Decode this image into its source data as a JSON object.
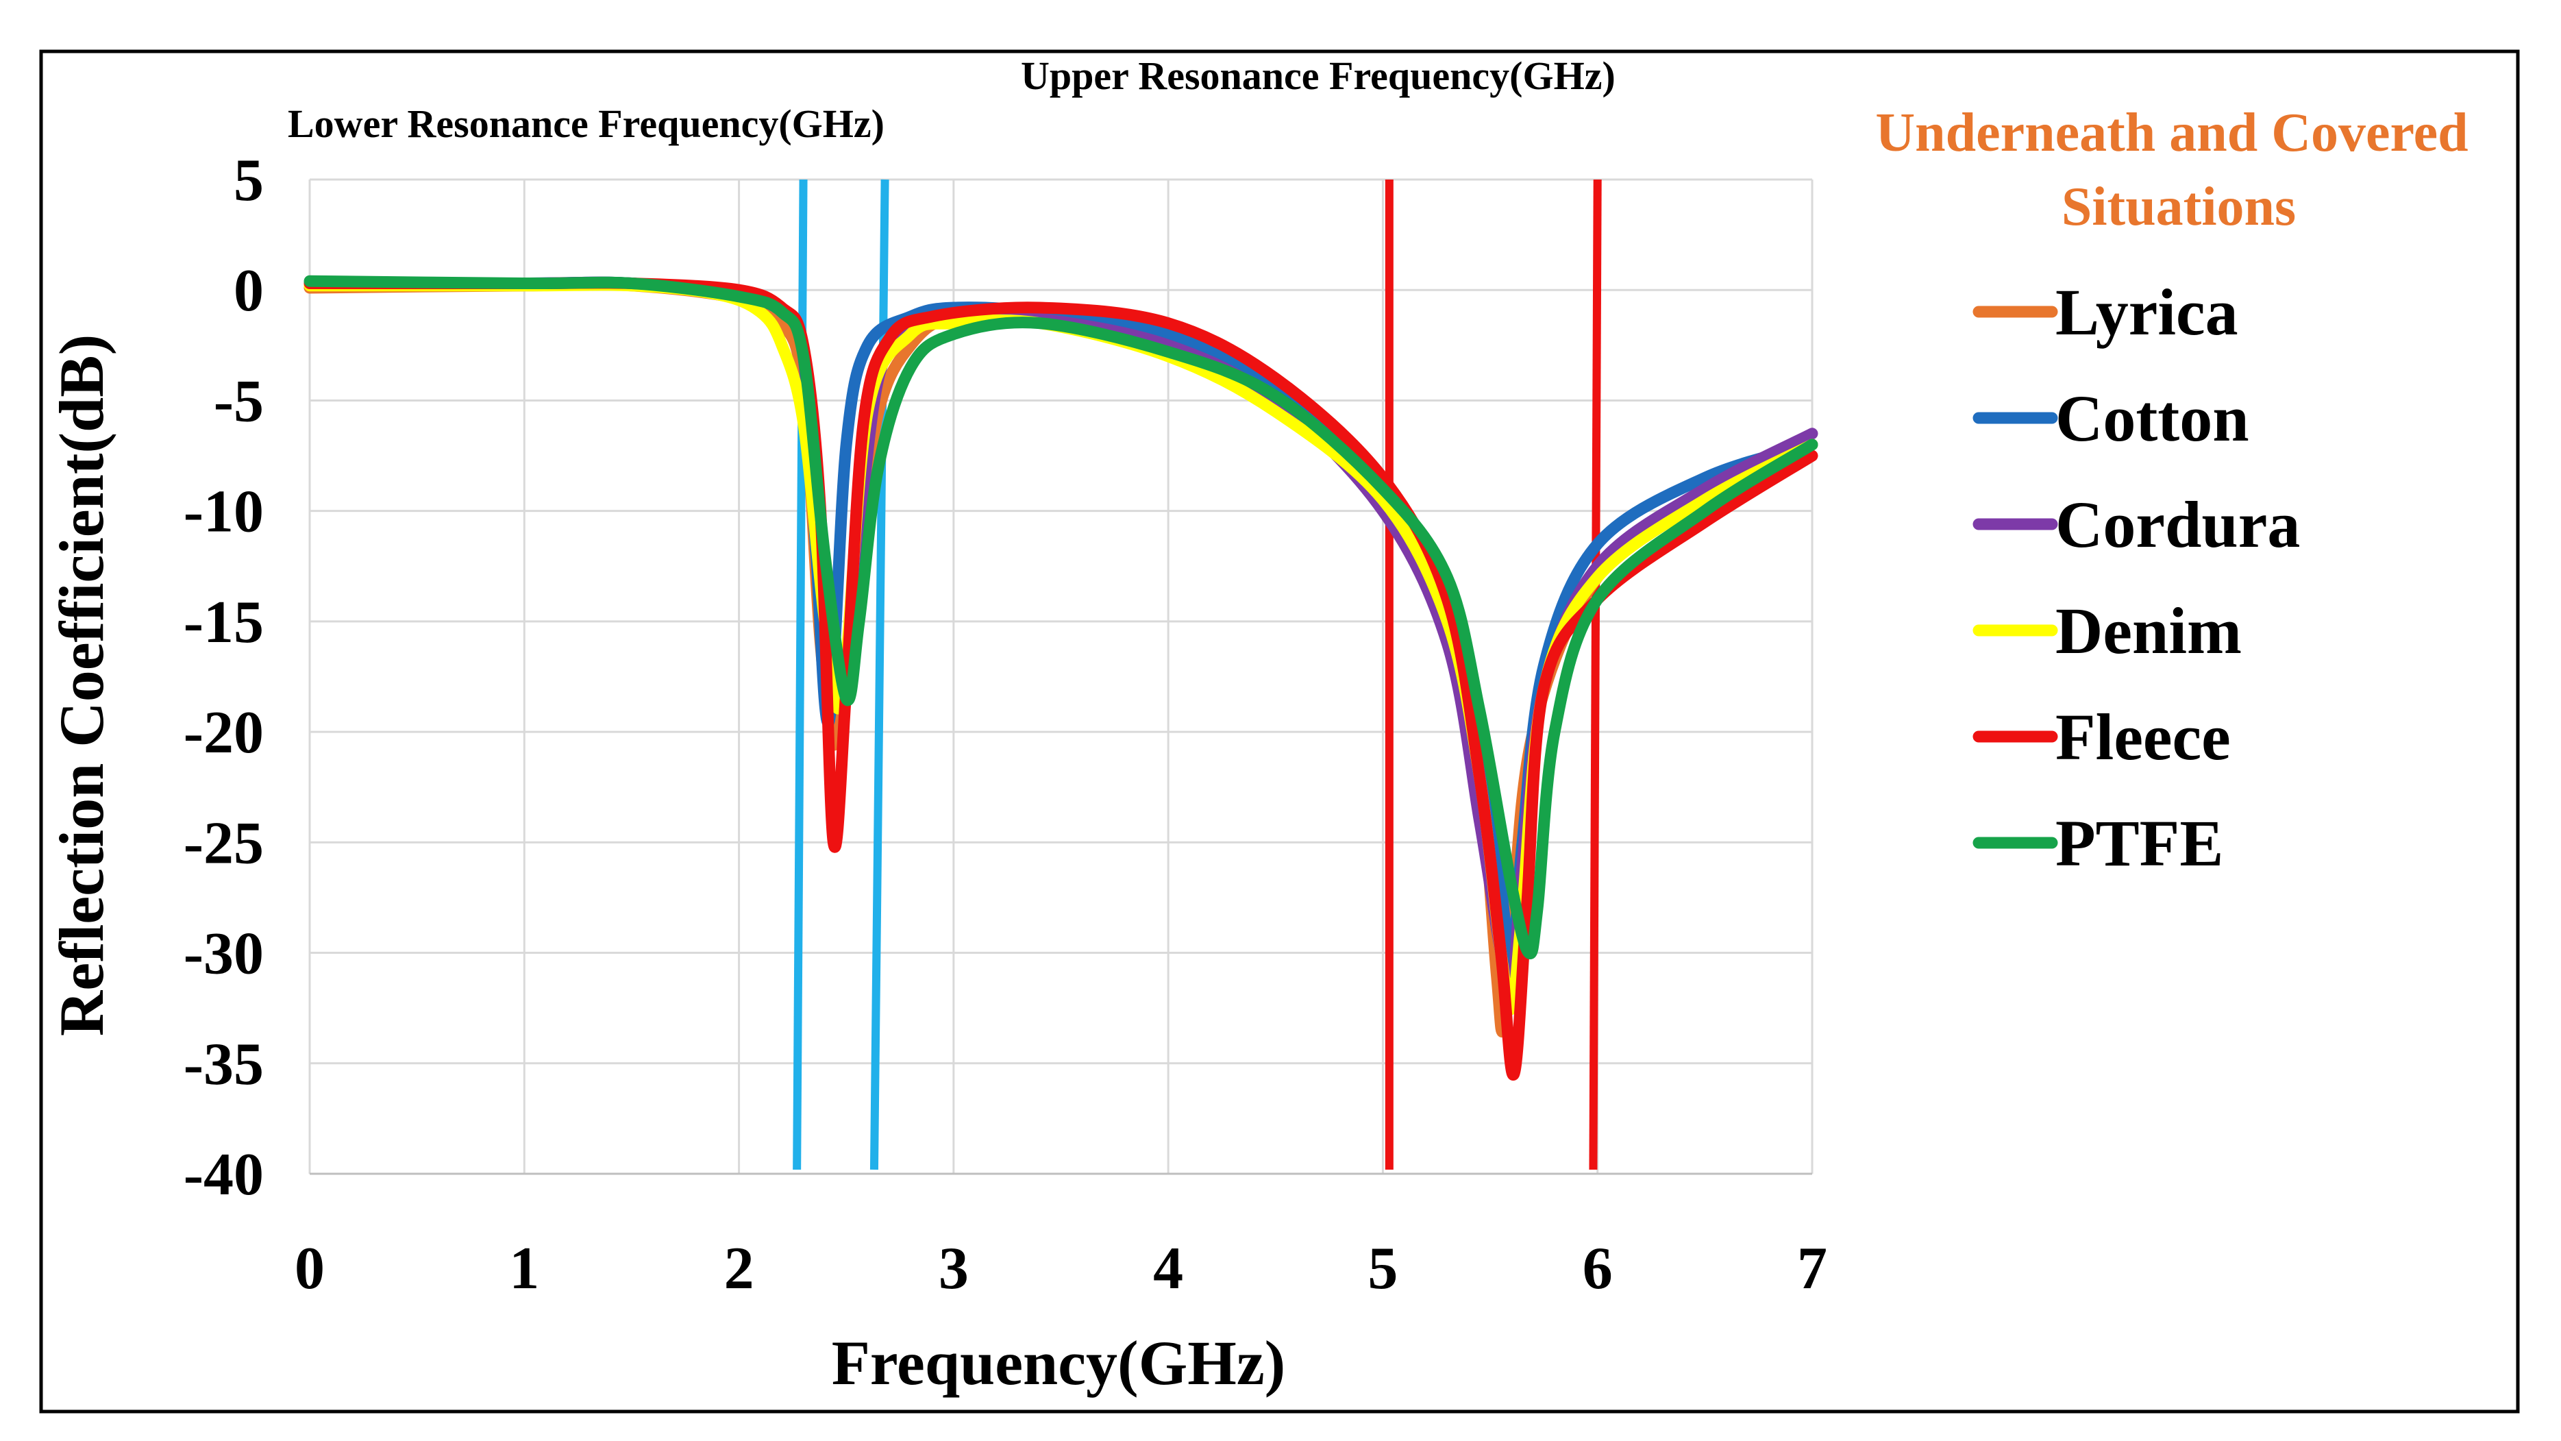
{
  "chart_data": {
    "type": "line",
    "xlabel": "Frequency(GHz)",
    "ylabel": "Reflection Coefficient(dB)",
    "xlim": [
      0,
      7
    ],
    "ylim": [
      -40,
      5
    ],
    "xticks": [
      0,
      1,
      2,
      3,
      4,
      5,
      6,
      7
    ],
    "yticks": [
      5,
      0,
      -5,
      -10,
      -15,
      -20,
      -25,
      -30,
      -35,
      -40
    ],
    "x_tick_labels": [
      "0",
      "1",
      "2",
      "3",
      "4",
      "5",
      "6",
      "7"
    ],
    "y_tick_labels": [
      "5",
      "0",
      "-5",
      "-10",
      "-15",
      "-20",
      "-25",
      "-30",
      "-35",
      "-40"
    ],
    "grid": true,
    "legend_position": "right",
    "legend_title": "Underneath and Covered Situations",
    "annotations": {
      "lower_band_label": "Lower Resonance Frequency(GHz)",
      "upper_band_label": "Upper Resonance Frequency(GHz)"
    },
    "band_markers": [
      {
        "group": "lower",
        "x_top": 2.3,
        "x_bottom": 2.27,
        "color": "#21b0ea"
      },
      {
        "group": "lower",
        "x_top": 2.68,
        "x_bottom": 2.63,
        "color": "#21b0ea"
      },
      {
        "group": "upper",
        "x_top": 5.03,
        "x_bottom": 5.03,
        "color": "#ee1111"
      },
      {
        "group": "upper",
        "x_top": 6.0,
        "x_bottom": 5.98,
        "color": "#ee1111"
      }
    ],
    "series": [
      {
        "name": "Lyrica",
        "color": "#e8762d",
        "x": [
          0,
          1,
          1.5,
          2.0,
          2.2,
          2.3,
          2.38,
          2.45,
          2.55,
          2.65,
          2.8,
          3.0,
          3.4,
          4.0,
          4.5,
          5.0,
          5.3,
          5.45,
          5.53,
          5.56,
          5.6,
          5.7,
          6.0,
          6.5,
          7.0
        ],
        "y": [
          0.1,
          0.2,
          0.2,
          -0.4,
          -1.5,
          -4.5,
          -16.0,
          -20.5,
          -12.5,
          -5.5,
          -2.5,
          -1.2,
          -1.2,
          -2.5,
          -4.5,
          -9.0,
          -14.0,
          -22.0,
          -31.0,
          -33.5,
          -29.0,
          -20.0,
          -13.0,
          -9.5,
          -7.0
        ]
      },
      {
        "name": "Cotton",
        "color": "#1f6dbf",
        "x": [
          0,
          1,
          1.5,
          2.0,
          2.2,
          2.3,
          2.36,
          2.42,
          2.5,
          2.6,
          2.8,
          3.0,
          3.4,
          4.0,
          4.5,
          5.0,
          5.3,
          5.45,
          5.55,
          5.6,
          5.65,
          5.75,
          6.0,
          6.5,
          7.0
        ],
        "y": [
          0.3,
          0.3,
          0.3,
          -0.3,
          -1.0,
          -3.0,
          -12.0,
          -19.5,
          -7.0,
          -2.5,
          -1.2,
          -0.8,
          -1.0,
          -2.0,
          -4.5,
          -9.0,
          -14.0,
          -20.0,
          -27.0,
          -30.5,
          -25.0,
          -17.0,
          -11.5,
          -8.5,
          -7.0
        ]
      },
      {
        "name": "Cordura",
        "color": "#7d3aa8",
        "x": [
          0,
          1,
          1.5,
          2.0,
          2.2,
          2.3,
          2.4,
          2.48,
          2.55,
          2.65,
          2.8,
          3.0,
          3.4,
          4.0,
          4.5,
          5.0,
          5.3,
          5.45,
          5.55,
          5.6,
          5.65,
          5.75,
          6.0,
          6.5,
          7.0
        ],
        "y": [
          0.3,
          0.3,
          0.3,
          -0.3,
          -1.0,
          -3.0,
          -14.0,
          -18.5,
          -12.0,
          -4.0,
          -1.8,
          -1.2,
          -1.3,
          -2.5,
          -5.0,
          -10.0,
          -16.0,
          -24.0,
          -30.0,
          -32.0,
          -26.0,
          -18.0,
          -12.5,
          -9.0,
          -6.5
        ]
      },
      {
        "name": "Denim",
        "color": "#ffff00",
        "x": [
          0,
          1,
          1.5,
          1.9,
          2.1,
          2.2,
          2.3,
          2.4,
          2.48,
          2.6,
          2.8,
          3.0,
          3.4,
          4.0,
          4.5,
          5.0,
          5.3,
          5.45,
          5.55,
          5.6,
          5.65,
          5.75,
          6.0,
          6.5,
          7.0
        ],
        "y": [
          0.2,
          0.2,
          0.2,
          -0.2,
          -1.0,
          -2.5,
          -6.0,
          -15.0,
          -18.5,
          -5.5,
          -2.0,
          -1.5,
          -1.5,
          -3.0,
          -5.5,
          -9.5,
          -15.0,
          -22.0,
          -30.0,
          -32.5,
          -28.0,
          -18.0,
          -13.0,
          -9.5,
          -7.0
        ]
      },
      {
        "name": "Fleece",
        "color": "#ee1111",
        "x": [
          0,
          1,
          1.5,
          2.0,
          2.2,
          2.3,
          2.38,
          2.44,
          2.5,
          2.58,
          2.7,
          2.9,
          3.4,
          4.0,
          4.5,
          5.0,
          5.3,
          5.45,
          5.55,
          5.61,
          5.67,
          5.75,
          6.0,
          6.5,
          7.0
        ],
        "y": [
          0.3,
          0.3,
          0.3,
          0.0,
          -0.8,
          -2.5,
          -10.0,
          -25.0,
          -18.0,
          -6.0,
          -2.2,
          -1.2,
          -0.8,
          -1.5,
          -4.0,
          -8.5,
          -14.0,
          -22.0,
          -30.0,
          -35.5,
          -28.0,
          -18.0,
          -14.0,
          -10.5,
          -7.5
        ]
      },
      {
        "name": "PTFE",
        "color": "#16a34a",
        "x": [
          0,
          1,
          1.5,
          2.0,
          2.2,
          2.3,
          2.4,
          2.5,
          2.56,
          2.65,
          2.8,
          3.0,
          3.4,
          4.0,
          4.5,
          5.0,
          5.3,
          5.45,
          5.6,
          5.68,
          5.72,
          5.8,
          6.0,
          6.5,
          7.0
        ],
        "y": [
          0.4,
          0.3,
          0.3,
          -0.3,
          -1.0,
          -3.0,
          -12.0,
          -18.5,
          -15.0,
          -8.0,
          -3.5,
          -2.0,
          -1.5,
          -2.8,
          -4.8,
          -9.0,
          -13.0,
          -19.0,
          -27.0,
          -30.0,
          -28.0,
          -20.0,
          -14.0,
          -10.0,
          -7.0
        ]
      }
    ]
  }
}
